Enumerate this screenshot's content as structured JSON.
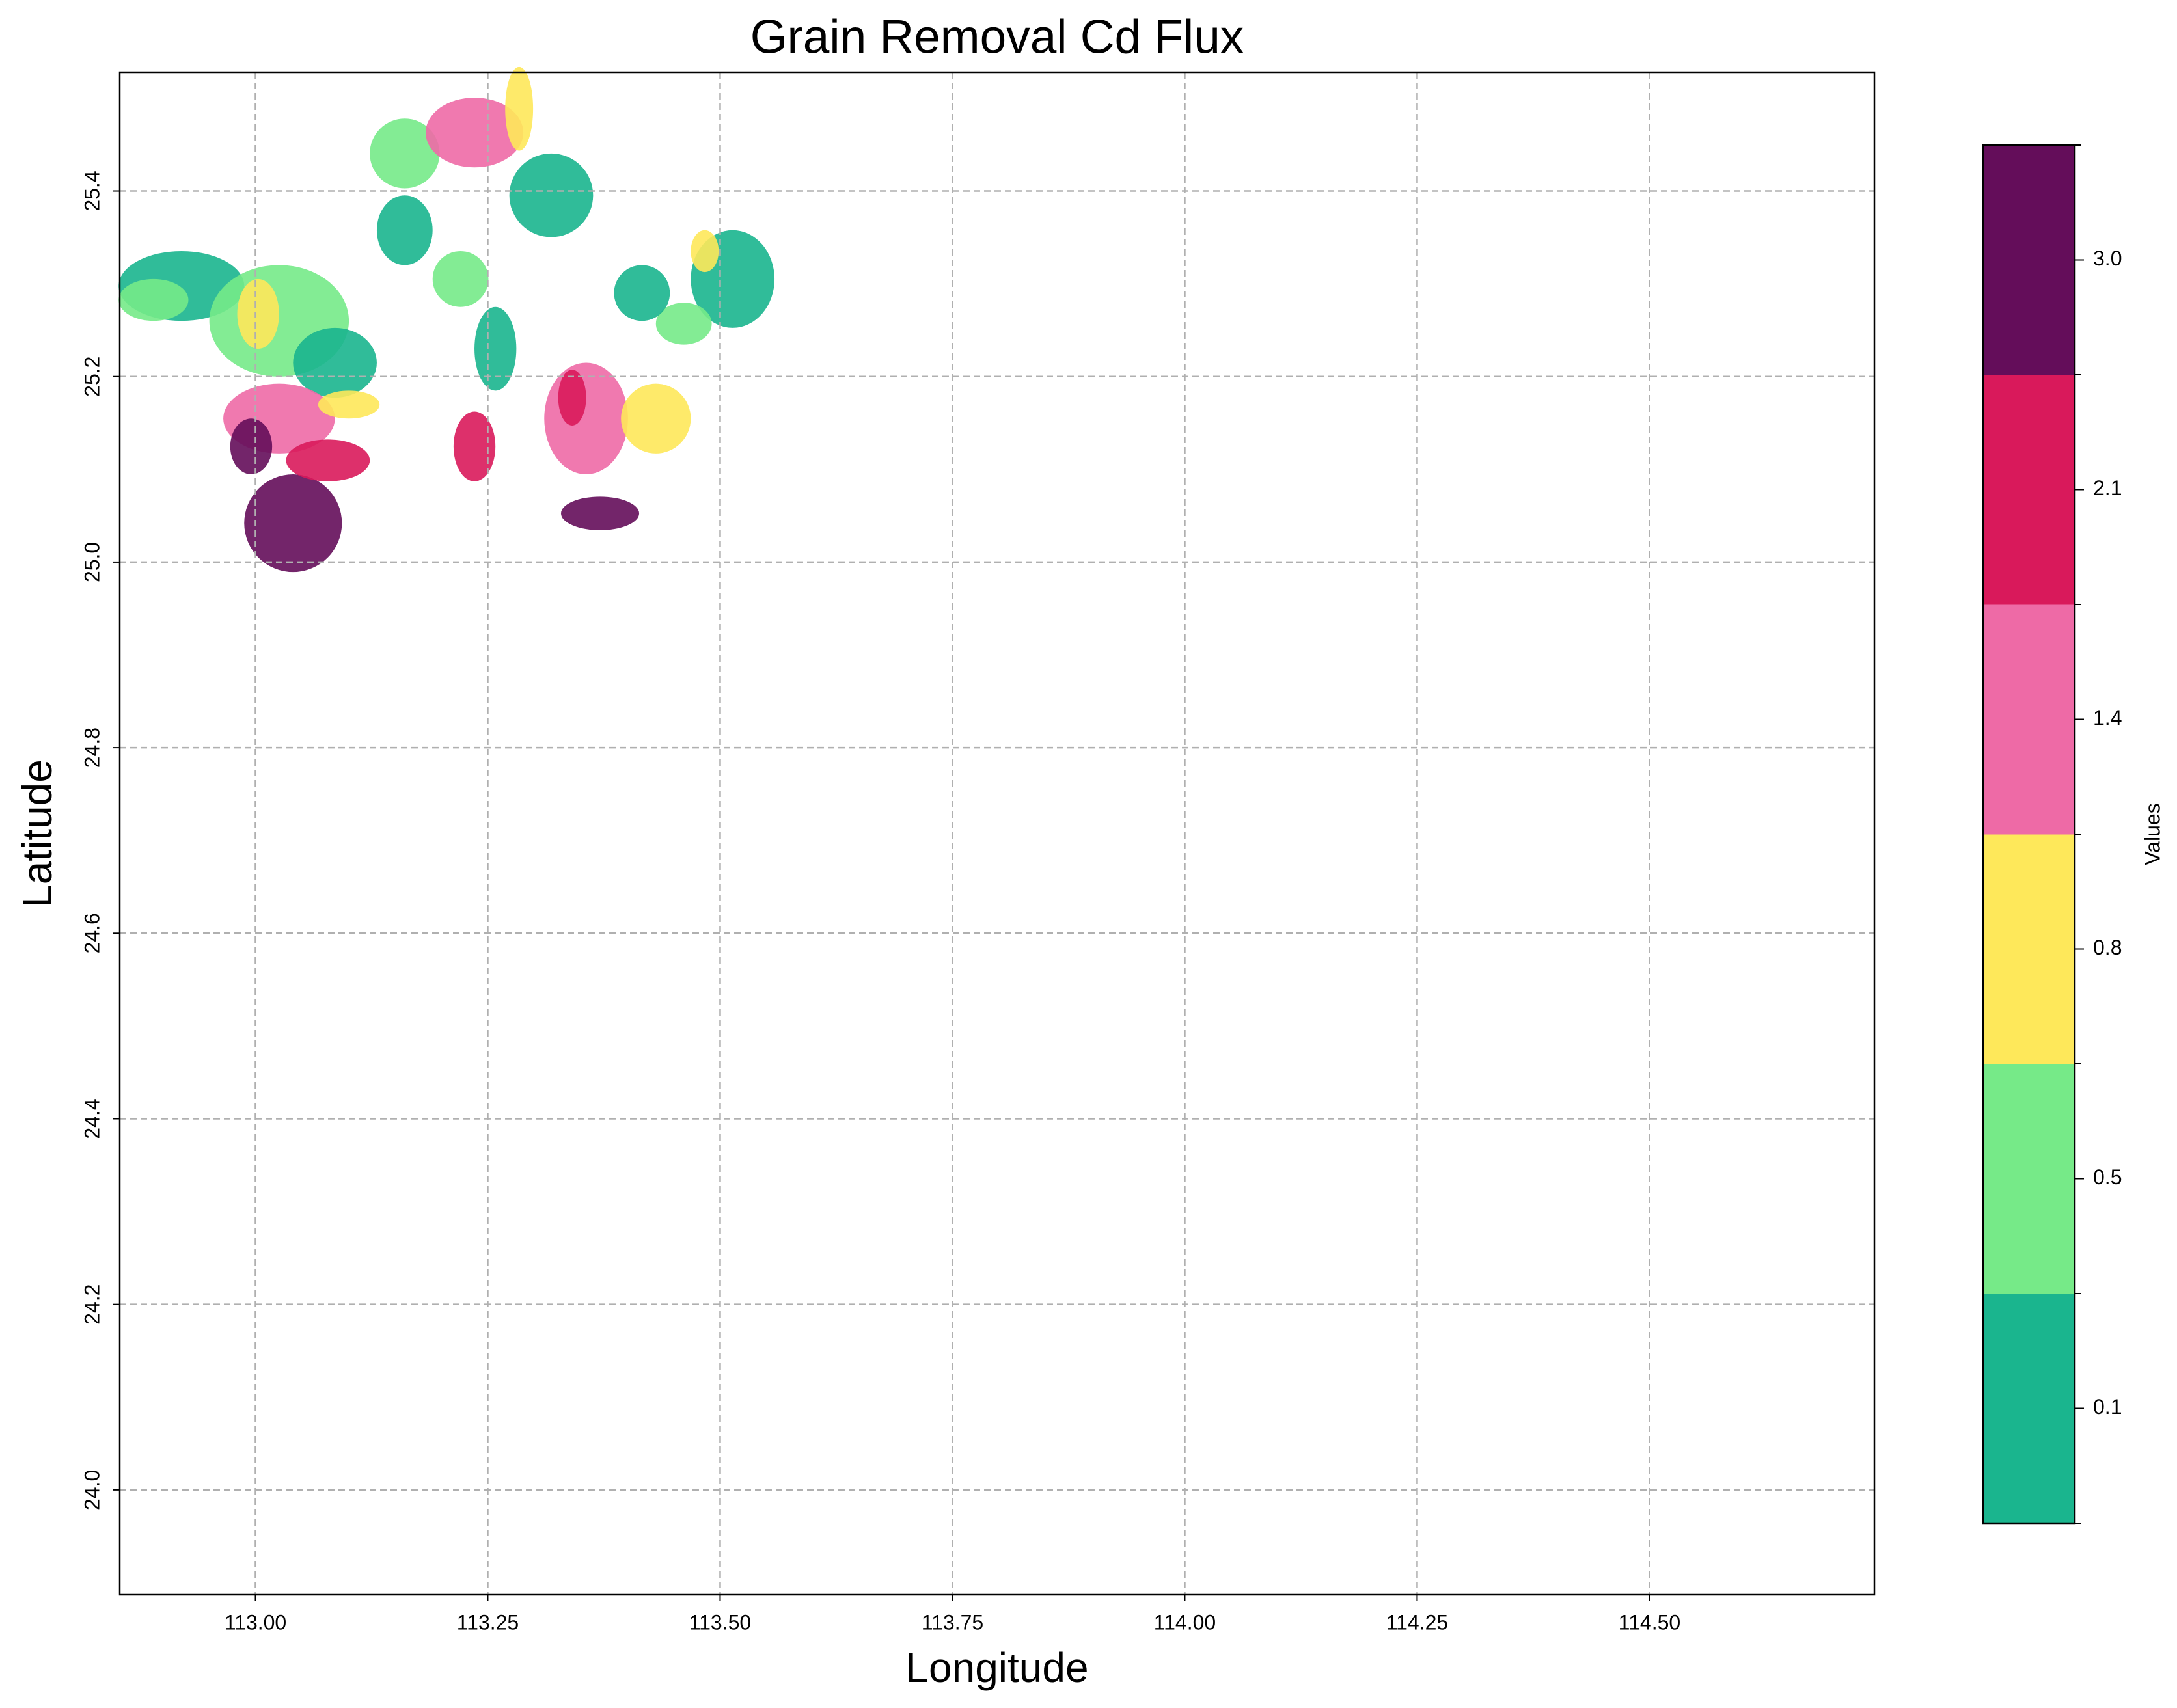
{
  "chart_data": {
    "type": "map",
    "title": "Grain Removal Cd Flux",
    "xlabel": "Longitude",
    "ylabel": "Latitude",
    "xlim": [
      112.854,
      114.742
    ],
    "ylim": [
      23.887,
      25.528
    ],
    "xticks": [
      {
        "value": 113,
        "label": "113.00"
      },
      113.25,
      {
        "value": 113.5,
        "label": "113.50"
      },
      113.75,
      {
        "value": 114,
        "label": "114.00"
      },
      114.25,
      {
        "value": 114.5,
        "label": "114.50"
      }
    ],
    "yticks": [
      {
        "value": 24,
        "label": "24.0"
      },
      24.2,
      24.4,
      24.6,
      24.8,
      {
        "value": 25,
        "label": "25.0"
      },
      25.2,
      25.4
    ],
    "grid": true,
    "colorbar": {
      "label": "Values",
      "colors": [
        "#1ab58e",
        "#76ea88",
        "#fee85a",
        "#ee6aa6",
        "#d9195b",
        "#640d5a"
      ],
      "ticks": [
        0.1,
        0.5,
        0.8,
        1.4,
        2.1,
        {
          "value": 3,
          "label": "3.0"
        }
      ]
    }
  }
}
